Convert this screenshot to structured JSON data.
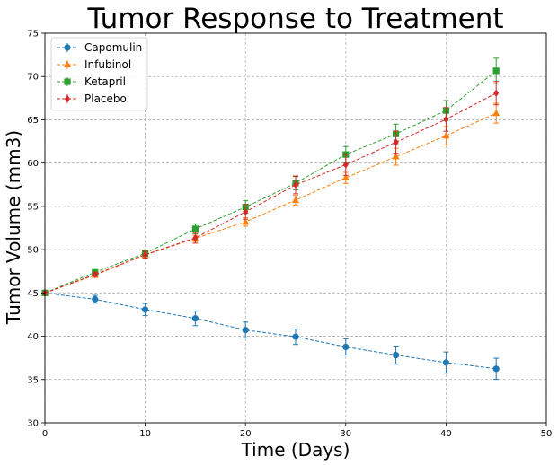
{
  "chart_data": {
    "type": "line",
    "title": "Tumor Response to Treatment",
    "xlabel": "Time (Days)",
    "ylabel": "Tumor Volume (mm3)",
    "xlim": [
      0,
      50
    ],
    "ylim": [
      30,
      75
    ],
    "xticks": [
      0,
      10,
      20,
      30,
      40,
      50
    ],
    "yticks": [
      30,
      35,
      40,
      45,
      50,
      55,
      60,
      65,
      70,
      75
    ],
    "grid": true,
    "legend_position": "top-left",
    "x": [
      0,
      5,
      10,
      15,
      20,
      25,
      30,
      35,
      40,
      45
    ],
    "series": [
      {
        "name": "Capomulin",
        "color": "#1f77b4",
        "marker": "circle",
        "values": [
          45.0,
          44.27,
          43.08,
          42.06,
          40.72,
          39.94,
          38.77,
          37.82,
          36.96,
          36.24
        ],
        "errors": [
          0,
          0.45,
          0.7,
          0.84,
          0.91,
          0.89,
          0.94,
          1.05,
          1.22,
          1.22
        ]
      },
      {
        "name": "Infubinol",
        "color": "#ff7f0e",
        "marker": "triangle",
        "values": [
          45.0,
          47.06,
          49.4,
          51.3,
          53.2,
          55.72,
          58.3,
          60.74,
          63.16,
          65.76
        ],
        "errors": [
          0,
          0.24,
          0.28,
          0.36,
          0.48,
          0.55,
          0.63,
          0.98,
          1.06,
          1.14
        ]
      },
      {
        "name": "Ketapril",
        "color": "#2ca02c",
        "marker": "square",
        "values": [
          45.0,
          47.39,
          49.58,
          52.4,
          54.92,
          57.68,
          60.99,
          63.37,
          66.07,
          70.66
        ],
        "errors": [
          0,
          0.26,
          0.36,
          0.58,
          0.73,
          0.76,
          0.93,
          1.13,
          1.16,
          1.45
        ]
      },
      {
        "name": "Placebo",
        "color": "#d62728",
        "marker": "diamond",
        "values": [
          45.0,
          47.13,
          49.42,
          51.36,
          54.36,
          57.48,
          59.81,
          62.42,
          65.05,
          68.08
        ],
        "errors": [
          0,
          0.22,
          0.4,
          0.61,
          0.84,
          1.03,
          1.22,
          1.29,
          1.37,
          1.35
        ]
      }
    ]
  }
}
